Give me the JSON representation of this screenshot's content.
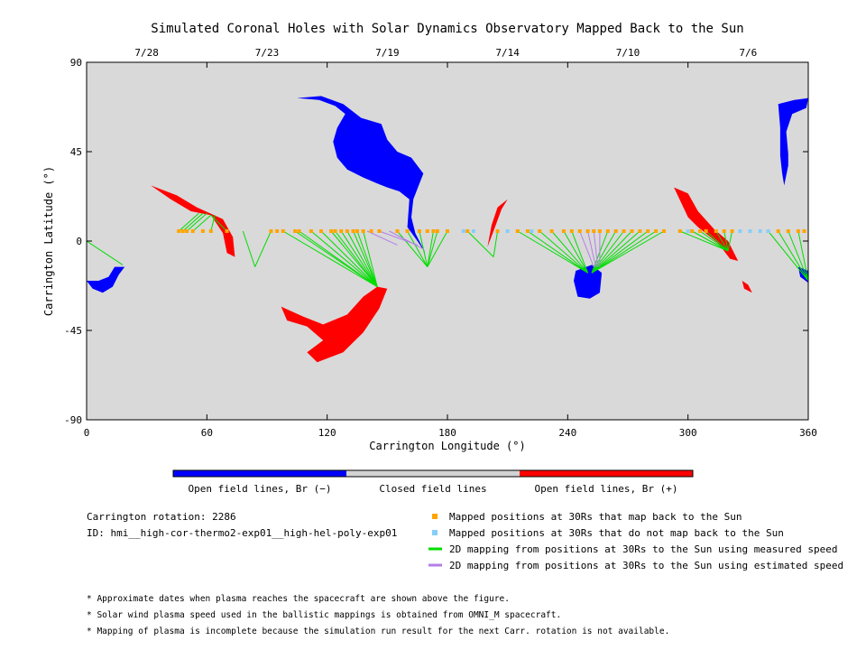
{
  "chart_data": {
    "type": "scatter",
    "title": "Simulated Coronal Holes with Solar Dynamics Observatory Mapped Back to the Sun",
    "xlabel": "Carrington Longitude (°)",
    "ylabel": "Carrington Latitude (°)",
    "xlim": [
      0,
      360
    ],
    "ylim": [
      -90,
      90
    ],
    "xticks": [
      0,
      60,
      120,
      180,
      240,
      300,
      360
    ],
    "yticks": [
      -90,
      -45,
      0,
      45,
      90
    ],
    "top_axis_dates": [
      {
        "label": "7/28",
        "lon": 30
      },
      {
        "label": "7/23",
        "lon": 90
      },
      {
        "label": "7/19",
        "lon": 150
      },
      {
        "label": "7/14",
        "lon": 210
      },
      {
        "label": "7/10",
        "lon": 270
      },
      {
        "label": "7/6",
        "lon": 330
      }
    ],
    "colors": {
      "background": "#d9d9d9",
      "open_negative": "#0000ff",
      "open_positive": "#ff0000",
      "closed": "#d3d3d3",
      "mapped": "#ffa500",
      "unmapped": "#87cefa",
      "measured_line": "#00dd00",
      "estimated_line": "#b47fe6"
    },
    "coronal_holes": [
      {
        "polarity": "negative",
        "outline": [
          [
            0,
            -20
          ],
          [
            3,
            -24
          ],
          [
            8,
            -26
          ],
          [
            13,
            -23
          ],
          [
            16,
            -17
          ],
          [
            19,
            -13
          ],
          [
            14,
            -13
          ],
          [
            11,
            -18
          ],
          [
            6,
            -20
          ]
        ]
      },
      {
        "polarity": "negative",
        "outline": [
          [
            105,
            72
          ],
          [
            117,
            73
          ],
          [
            128,
            69
          ],
          [
            137,
            62
          ],
          [
            147,
            59
          ],
          [
            150,
            51
          ],
          [
            155,
            45
          ],
          [
            162,
            42
          ],
          [
            168,
            34
          ],
          [
            163,
            21
          ],
          [
            162,
            12
          ],
          [
            164,
            4
          ],
          [
            168,
            -4
          ],
          [
            172,
            -12
          ],
          [
            169,
            -6
          ],
          [
            165,
            0
          ],
          [
            160,
            7
          ],
          [
            161,
            21
          ],
          [
            156,
            25
          ],
          [
            150,
            27
          ],
          [
            145,
            29
          ],
          [
            138,
            32
          ],
          [
            130,
            36
          ],
          [
            125,
            42
          ],
          [
            123,
            50
          ],
          [
            125,
            57
          ],
          [
            129,
            64
          ],
          [
            124,
            68
          ],
          [
            116,
            71
          ]
        ]
      },
      {
        "polarity": "negative",
        "outline": [
          [
            244,
            -15
          ],
          [
            252,
            -12
          ],
          [
            257,
            -16
          ],
          [
            256,
            -26
          ],
          [
            251,
            -29
          ],
          [
            245,
            -28
          ],
          [
            243,
            -20
          ]
        ]
      },
      {
        "polarity": "negative",
        "outline": [
          [
            345,
            69
          ],
          [
            353,
            71
          ],
          [
            360,
            72
          ],
          [
            359,
            67
          ],
          [
            352,
            64
          ],
          [
            349,
            55
          ],
          [
            350,
            44
          ],
          [
            350,
            38
          ],
          [
            348,
            28
          ],
          [
            347,
            34
          ],
          [
            346,
            43
          ],
          [
            346,
            57
          ]
        ]
      },
      {
        "polarity": "negative",
        "outline": [
          [
            355,
            -13
          ],
          [
            360,
            -15
          ],
          [
            360,
            -21
          ],
          [
            356,
            -18
          ]
        ]
      },
      {
        "polarity": "positive",
        "outline": [
          [
            32,
            28
          ],
          [
            45,
            23
          ],
          [
            55,
            17
          ],
          [
            68,
            11
          ],
          [
            73,
            2
          ],
          [
            74,
            -8
          ],
          [
            70,
            -6
          ],
          [
            68,
            4
          ],
          [
            62,
            13
          ],
          [
            52,
            15
          ],
          [
            42,
            21
          ]
        ]
      },
      {
        "polarity": "positive",
        "outline": [
          [
            97,
            -33
          ],
          [
            108,
            -38
          ],
          [
            118,
            -42
          ],
          [
            130,
            -37
          ],
          [
            138,
            -28
          ],
          [
            145,
            -23
          ],
          [
            150,
            -24
          ],
          [
            146,
            -34
          ],
          [
            138,
            -46
          ],
          [
            128,
            -56
          ],
          [
            115,
            -61
          ],
          [
            110,
            -56
          ],
          [
            118,
            -50
          ],
          [
            110,
            -43
          ],
          [
            100,
            -40
          ]
        ]
      },
      {
        "polarity": "positive",
        "outline": [
          [
            200,
            -3
          ],
          [
            202,
            8
          ],
          [
            205,
            17
          ],
          [
            210,
            21
          ],
          [
            207,
            16
          ],
          [
            203,
            5
          ]
        ]
      },
      {
        "polarity": "positive",
        "outline": [
          [
            293,
            27
          ],
          [
            300,
            24
          ],
          [
            305,
            15
          ],
          [
            313,
            6
          ],
          [
            320,
            0
          ],
          [
            325,
            -10
          ],
          [
            321,
            -9
          ],
          [
            315,
            -1
          ],
          [
            305,
            7
          ],
          [
            300,
            12
          ]
        ]
      },
      {
        "polarity": "positive",
        "outline": [
          [
            327,
            -20
          ],
          [
            330,
            -22
          ],
          [
            332,
            -26
          ],
          [
            328,
            -24
          ]
        ]
      }
    ],
    "mapped_lon": [
      46,
      48,
      50,
      53,
      58,
      62,
      70,
      92,
      95,
      98,
      104,
      106,
      112,
      117,
      122,
      124,
      127,
      130,
      133,
      135,
      138,
      142,
      146,
      155,
      160,
      166,
      170,
      173,
      175,
      180,
      190,
      205,
      215,
      220,
      226,
      232,
      238,
      242,
      246,
      250,
      253,
      256,
      260,
      264,
      268,
      272,
      276,
      280,
      284,
      288,
      296,
      302,
      306,
      309,
      314,
      318,
      322,
      340,
      345,
      350,
      355,
      358
    ],
    "unmapped_lon": [
      188,
      193,
      210,
      222,
      300,
      326,
      331,
      336,
      340
    ],
    "measured_mappings": [
      [
        0,
        0,
        18,
        -12
      ],
      [
        46,
        5,
        56,
        14
      ],
      [
        48,
        5,
        58,
        14
      ],
      [
        50,
        5,
        60,
        14
      ],
      [
        53,
        5,
        62,
        13
      ],
      [
        62,
        5,
        64,
        13
      ],
      [
        70,
        5,
        62,
        13
      ],
      [
        78,
        5,
        84,
        -13
      ],
      [
        92,
        5,
        84,
        -13
      ],
      [
        98,
        5,
        145,
        -23
      ],
      [
        104,
        5,
        145,
        -23
      ],
      [
        106,
        5,
        145,
        -23
      ],
      [
        112,
        5,
        145,
        -23
      ],
      [
        117,
        5,
        145,
        -23
      ],
      [
        122,
        5,
        145,
        -23
      ],
      [
        124,
        5,
        145,
        -23
      ],
      [
        127,
        5,
        145,
        -23
      ],
      [
        130,
        5,
        145,
        -23
      ],
      [
        133,
        5,
        145,
        -23
      ],
      [
        135,
        5,
        145,
        -23
      ],
      [
        138,
        5,
        145,
        -23
      ],
      [
        155,
        5,
        170,
        -13
      ],
      [
        160,
        5,
        170,
        -13
      ],
      [
        166,
        5,
        170,
        -13
      ],
      [
        173,
        5,
        170,
        -13
      ],
      [
        175,
        5,
        170,
        -13
      ],
      [
        180,
        5,
        170,
        -13
      ],
      [
        190,
        5,
        203,
        -8
      ],
      [
        205,
        5,
        203,
        -8
      ],
      [
        215,
        5,
        250,
        -16
      ],
      [
        220,
        5,
        250,
        -16
      ],
      [
        226,
        5,
        250,
        -16
      ],
      [
        232,
        5,
        250,
        -16
      ],
      [
        238,
        5,
        250,
        -16
      ],
      [
        242,
        5,
        250,
        -16
      ],
      [
        260,
        5,
        252,
        -16
      ],
      [
        264,
        5,
        252,
        -16
      ],
      [
        268,
        5,
        252,
        -16
      ],
      [
        272,
        5,
        252,
        -16
      ],
      [
        276,
        5,
        252,
        -16
      ],
      [
        280,
        5,
        252,
        -16
      ],
      [
        284,
        5,
        252,
        -16
      ],
      [
        288,
        5,
        252,
        -16
      ],
      [
        296,
        5,
        320,
        -5
      ],
      [
        302,
        5,
        320,
        -5
      ],
      [
        306,
        5,
        320,
        -5
      ],
      [
        309,
        5,
        320,
        -5
      ],
      [
        314,
        5,
        320,
        -5
      ],
      [
        318,
        5,
        320,
        -5
      ],
      [
        322,
        5,
        320,
        -5
      ],
      [
        340,
        5,
        360,
        -20
      ],
      [
        345,
        5,
        360,
        -20
      ],
      [
        350,
        5,
        360,
        -20
      ],
      [
        355,
        5,
        360,
        -20
      ]
    ],
    "estimated_mappings": [
      [
        140,
        5,
        155,
        -2
      ],
      [
        146,
        5,
        165,
        -2
      ],
      [
        151,
        5,
        168,
        -4
      ],
      [
        246,
        5,
        253,
        -13
      ],
      [
        250,
        5,
        254,
        -13
      ],
      [
        253,
        5,
        255,
        -13
      ],
      [
        256,
        5,
        256,
        -13
      ]
    ]
  },
  "colorbar": {
    "segments": [
      {
        "color": "#0000ff",
        "label": "Open field lines, Br (−)"
      },
      {
        "color": "#d3d3d3",
        "label": "Closed field lines"
      },
      {
        "color": "#ff0000",
        "label": "Open field lines, Br (+)"
      }
    ]
  },
  "info": {
    "rotation": "Carrington rotation: 2286",
    "run_id": "ID: hmi__high-cor-thermo2-exp01__high-hel-poly-exp01"
  },
  "legend": [
    {
      "kind": "square",
      "color": "#ffa500",
      "label": "Mapped positions at 30Rs that map back to the Sun"
    },
    {
      "kind": "square",
      "color": "#87cefa",
      "label": "Mapped positions at 30Rs that do not map back to the Sun"
    },
    {
      "kind": "line",
      "color": "#00dd00",
      "label": "2D mapping from positions at 30Rs to the Sun using measured speed"
    },
    {
      "kind": "line",
      "color": "#b47fe6",
      "label": "2D mapping from positions at 30Rs to the Sun using estimated speed"
    }
  ],
  "footnotes": [
    "* Approximate dates when plasma reaches the spacecraft are shown above the figure.",
    "* Solar wind plasma speed used in the ballistic mappings is obtained from OMNI_M spacecraft.",
    "* Mapping of plasma is incomplete because the simulation run result for the next Carr. rotation is not available."
  ]
}
